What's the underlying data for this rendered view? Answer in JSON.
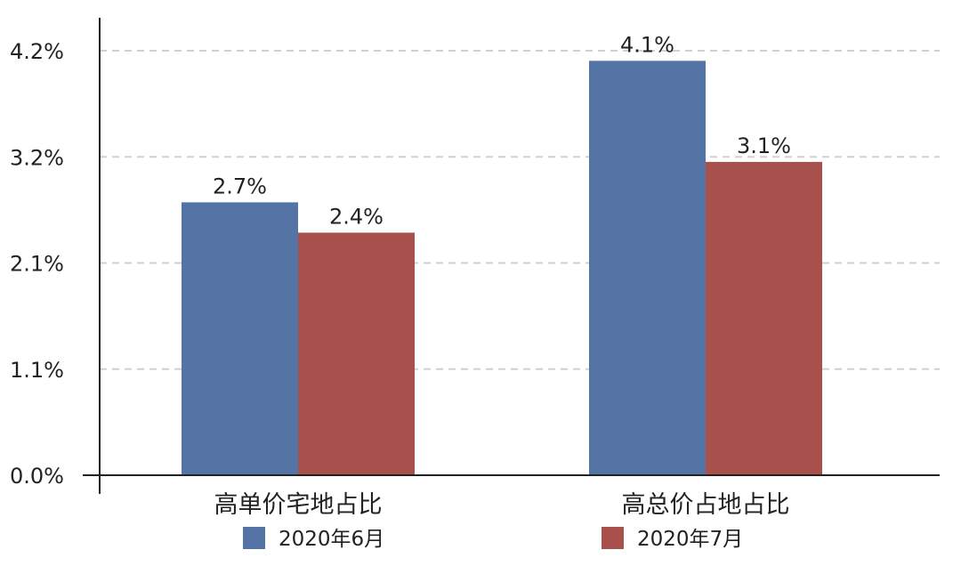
{
  "chart_data": {
    "type": "bar",
    "categories": [
      "高单价宅地占比",
      "高总价占地占比"
    ],
    "series": [
      {
        "name": "2020年6月",
        "values": [
          2.7,
          4.1
        ],
        "labels": [
          "2.7%",
          "4.1%"
        ],
        "color": "#5374a5"
      },
      {
        "name": "2020年7月",
        "values": [
          2.4,
          3.1
        ],
        "labels": [
          "2.4%",
          "3.1%"
        ],
        "color": "#a8514c"
      }
    ],
    "yticks": [
      {
        "value": 0.0,
        "label": "0.0%"
      },
      {
        "value": 1.05,
        "label": "1.1%"
      },
      {
        "value": 2.1,
        "label": "2.1%"
      },
      {
        "value": 3.15,
        "label": "3.2%"
      },
      {
        "value": 4.2,
        "label": "4.2%"
      }
    ],
    "ylim": [
      0,
      4.2
    ],
    "grid": true,
    "legend_position": "bottom",
    "grid_color": "#d0d0d0",
    "axis_color": "#222222"
  }
}
